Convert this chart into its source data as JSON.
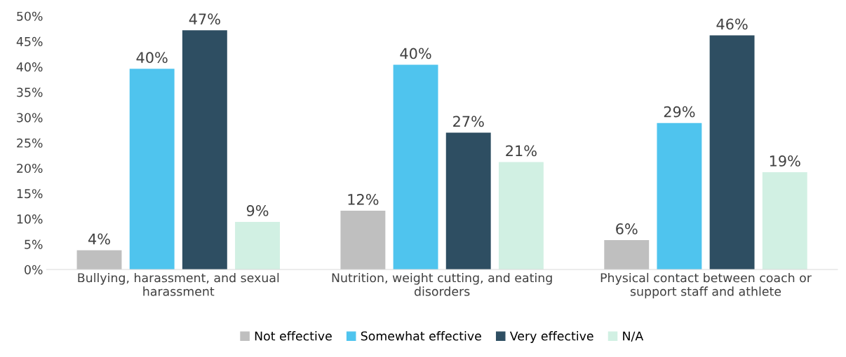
{
  "chart_data": {
    "type": "bar",
    "categories": [
      "Bullying, harassment, and sexual\nharassment",
      "Nutrition, weight cutting, and eating\ndisorders",
      "Physical contact between coach or\nsupport staff and athlete"
    ],
    "series": [
      {
        "name": "Not effective",
        "color": "#bfbfbf",
        "values": [
          3.8,
          11.6,
          5.8
        ],
        "value_labels": [
          "4%",
          "12%",
          "6%"
        ]
      },
      {
        "name": "Somewhat effective",
        "color": "#4fc4ee",
        "values": [
          39.6,
          40.4,
          28.9
        ],
        "value_labels": [
          "40%",
          "40%",
          "29%"
        ]
      },
      {
        "name": "Very effective",
        "color": "#2e4e62",
        "values": [
          47.2,
          27.0,
          46.2
        ],
        "value_labels": [
          "47%",
          "27%",
          "46%"
        ]
      },
      {
        "name": "N/A",
        "color": "#d1f0e3",
        "values": [
          9.4,
          21.2,
          19.2
        ],
        "value_labels": [
          "9%",
          "21%",
          "19%"
        ]
      }
    ],
    "ylim": [
      0,
      50
    ],
    "yticks": [
      {
        "value": 0,
        "label": "0%"
      },
      {
        "value": 5,
        "label": "5%"
      },
      {
        "value": 10,
        "label": "10%"
      },
      {
        "value": 15,
        "label": "15%"
      },
      {
        "value": 20,
        "label": "20%"
      },
      {
        "value": 25,
        "label": "25%"
      },
      {
        "value": 30,
        "label": "30%"
      },
      {
        "value": 35,
        "label": "35%"
      },
      {
        "value": 40,
        "label": "40%"
      },
      {
        "value": 45,
        "label": "45%"
      },
      {
        "value": 50,
        "label": "50%"
      }
    ],
    "grid": false,
    "legend": "bottom"
  }
}
